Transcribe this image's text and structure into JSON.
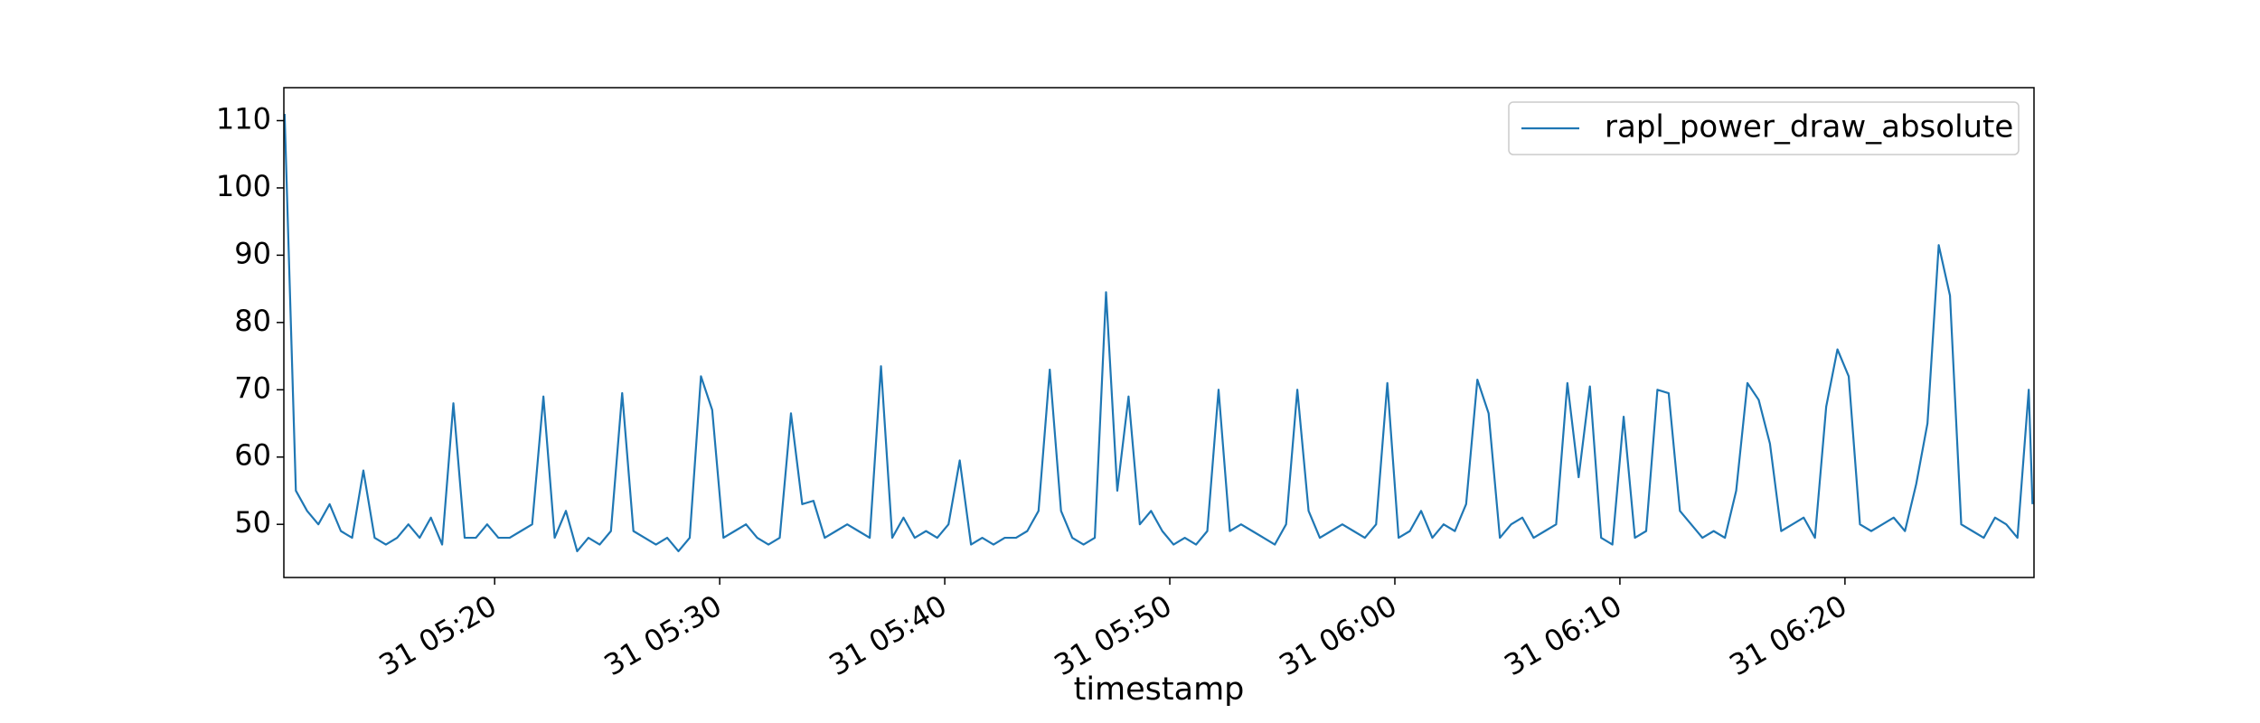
{
  "chart_data": {
    "type": "line",
    "xlabel": "timestamp",
    "x": [
      "31 05:10:40",
      "31 05:11:10",
      "31 05:11:40",
      "31 05:12:10",
      "31 05:12:40",
      "31 05:13:10",
      "31 05:13:40",
      "31 05:14:10",
      "31 05:14:40",
      "31 05:15:10",
      "31 05:15:40",
      "31 05:16:10",
      "31 05:16:40",
      "31 05:17:10",
      "31 05:17:40",
      "31 05:18:10",
      "31 05:18:40",
      "31 05:19:10",
      "31 05:19:40",
      "31 05:20:10",
      "31 05:20:40",
      "31 05:21:10",
      "31 05:21:40",
      "31 05:22:10",
      "31 05:22:40",
      "31 05:23:10",
      "31 05:23:40",
      "31 05:24:10",
      "31 05:24:40",
      "31 05:25:10",
      "31 05:25:40",
      "31 05:26:10",
      "31 05:26:40",
      "31 05:27:10",
      "31 05:27:40",
      "31 05:28:10",
      "31 05:28:40",
      "31 05:29:10",
      "31 05:29:40",
      "31 05:30:10",
      "31 05:30:40",
      "31 05:31:10",
      "31 05:31:40",
      "31 05:32:10",
      "31 05:32:40",
      "31 05:33:10",
      "31 05:33:40",
      "31 05:34:10",
      "31 05:34:40",
      "31 05:35:10",
      "31 05:35:40",
      "31 05:36:10",
      "31 05:36:40",
      "31 05:37:10",
      "31 05:37:40",
      "31 05:38:10",
      "31 05:38:40",
      "31 05:39:10",
      "31 05:39:40",
      "31 05:40:10",
      "31 05:40:40",
      "31 05:41:10",
      "31 05:41:40",
      "31 05:42:10",
      "31 05:42:40",
      "31 05:43:10",
      "31 05:43:40",
      "31 05:44:10",
      "31 05:44:40",
      "31 05:45:10",
      "31 05:45:40",
      "31 05:46:10",
      "31 05:46:40",
      "31 05:47:10",
      "31 05:47:40",
      "31 05:48:10",
      "31 05:48:40",
      "31 05:49:10",
      "31 05:49:40",
      "31 05:50:10",
      "31 05:50:40",
      "31 05:51:10",
      "31 05:51:40",
      "31 05:52:10",
      "31 05:52:40",
      "31 05:53:10",
      "31 05:53:40",
      "31 05:54:10",
      "31 05:54:40",
      "31 05:55:10",
      "31 05:55:40",
      "31 05:56:10",
      "31 05:56:40",
      "31 05:57:10",
      "31 05:57:40",
      "31 05:58:10",
      "31 05:58:40",
      "31 05:59:10",
      "31 05:59:40",
      "31 06:00:10",
      "31 06:00:40",
      "31 06:01:10",
      "31 06:01:40",
      "31 06:02:10",
      "31 06:02:40",
      "31 06:03:10",
      "31 06:03:40",
      "31 06:04:10",
      "31 06:04:40",
      "31 06:05:10",
      "31 06:05:40",
      "31 06:06:10",
      "31 06:06:40",
      "31 06:07:10",
      "31 06:07:40",
      "31 06:08:10",
      "31 06:08:40",
      "31 06:09:10",
      "31 06:09:40",
      "31 06:10:10",
      "31 06:10:40",
      "31 06:11:10",
      "31 06:11:40",
      "31 06:12:10",
      "31 06:12:40",
      "31 06:13:10",
      "31 06:13:40",
      "31 06:14:10",
      "31 06:14:40",
      "31 06:15:10",
      "31 06:15:40",
      "31 06:16:10",
      "31 06:16:40",
      "31 06:17:10",
      "31 06:17:40",
      "31 06:18:10",
      "31 06:18:40",
      "31 06:19:10",
      "31 06:19:40",
      "31 06:20:10",
      "31 06:20:40",
      "31 06:21:10",
      "31 06:21:40",
      "31 06:22:10",
      "31 06:22:40",
      "31 06:23:10",
      "31 06:23:40",
      "31 06:24:10",
      "31 06:24:40",
      "31 06:25:10",
      "31 06:25:40",
      "31 06:26:10",
      "31 06:26:40",
      "31 06:27:10",
      "31 06:27:40",
      "31 06:28:10",
      "31 06:28:20"
    ],
    "series": [
      {
        "name": "rapl_power_draw_absolute",
        "color": "#1f77b4",
        "values": [
          111,
          55,
          52,
          50,
          53,
          49,
          48,
          58,
          48,
          47,
          48,
          50,
          48,
          51,
          47,
          68,
          48,
          48,
          50,
          48,
          48,
          49,
          50,
          69,
          48,
          52,
          46,
          48,
          47,
          49,
          69.5,
          49,
          48,
          47,
          48,
          46,
          48,
          72,
          67,
          48,
          49,
          50,
          48,
          47,
          48,
          66.5,
          53,
          53.5,
          48,
          49,
          50,
          49,
          48,
          73.5,
          48,
          51,
          48,
          49,
          48,
          50,
          59.5,
          47,
          48,
          47,
          48,
          48,
          49,
          52,
          73,
          52,
          48,
          47,
          48,
          84.5,
          55,
          69,
          50,
          52,
          49,
          47,
          48,
          47,
          49,
          70,
          49,
          50,
          49,
          48,
          47,
          50,
          70,
          52,
          48,
          49,
          50,
          49,
          48,
          50,
          71,
          48,
          49,
          52,
          48,
          50,
          49,
          53,
          71.5,
          66.5,
          48,
          50,
          51,
          48,
          49,
          50,
          71,
          57,
          70.5,
          48,
          47,
          66,
          48,
          49,
          70,
          69.5,
          52,
          50,
          48,
          49,
          48,
          55,
          71,
          68.5,
          62,
          49,
          50,
          51,
          48,
          67.5,
          76,
          72,
          50,
          49,
          50,
          51,
          49,
          56,
          65,
          91.5,
          84,
          50,
          49,
          48,
          51,
          50,
          48,
          70,
          53
        ]
      }
    ],
    "xlim": [
      "31 05:10:38",
      "31 06:28:24"
    ],
    "xticks": [
      "31 05:20",
      "31 05:30",
      "31 05:40",
      "31 05:50",
      "31 06:00",
      "31 06:10",
      "31 06:20"
    ],
    "ylim": [
      42.1,
      114.9
    ],
    "yticks": [
      50,
      60,
      70,
      80,
      90,
      100,
      110
    ],
    "legend": "upper right"
  }
}
